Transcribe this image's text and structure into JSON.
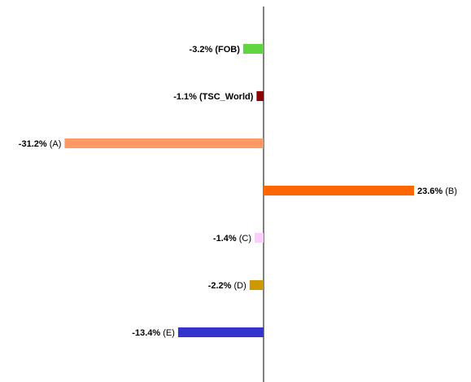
{
  "chart_data": {
    "type": "bar",
    "orientation": "horizontal",
    "unit": "%",
    "xlim": [
      -31.2,
      23.6
    ],
    "grid": false,
    "categories": [
      {
        "value_text": "-3.2%",
        "name_text": "(FOB)",
        "name_bold": true
      },
      {
        "value_text": "-1.1%",
        "name_text": "(TSC_World)",
        "name_bold": true
      },
      {
        "value_text": "-31.2%",
        "name_text": "(A)",
        "name_bold": false
      },
      {
        "value_text": "23.6%",
        "name_text": "(B)",
        "name_bold": false
      },
      {
        "value_text": "-1.4%",
        "name_text": "(C)",
        "name_bold": false
      },
      {
        "value_text": "-2.2%",
        "name_text": "(D)",
        "name_bold": false
      },
      {
        "value_text": "-13.4%",
        "name_text": "(E)",
        "name_bold": false
      }
    ],
    "values": [
      -3.2,
      -1.1,
      -31.2,
      23.6,
      -1.4,
      -2.2,
      -13.4
    ],
    "colors": [
      "#5fd63f",
      "#8b0000",
      "#ff9966",
      "#ff6600",
      "#ffccff",
      "#cc9900",
      "#3333cc"
    ]
  }
}
